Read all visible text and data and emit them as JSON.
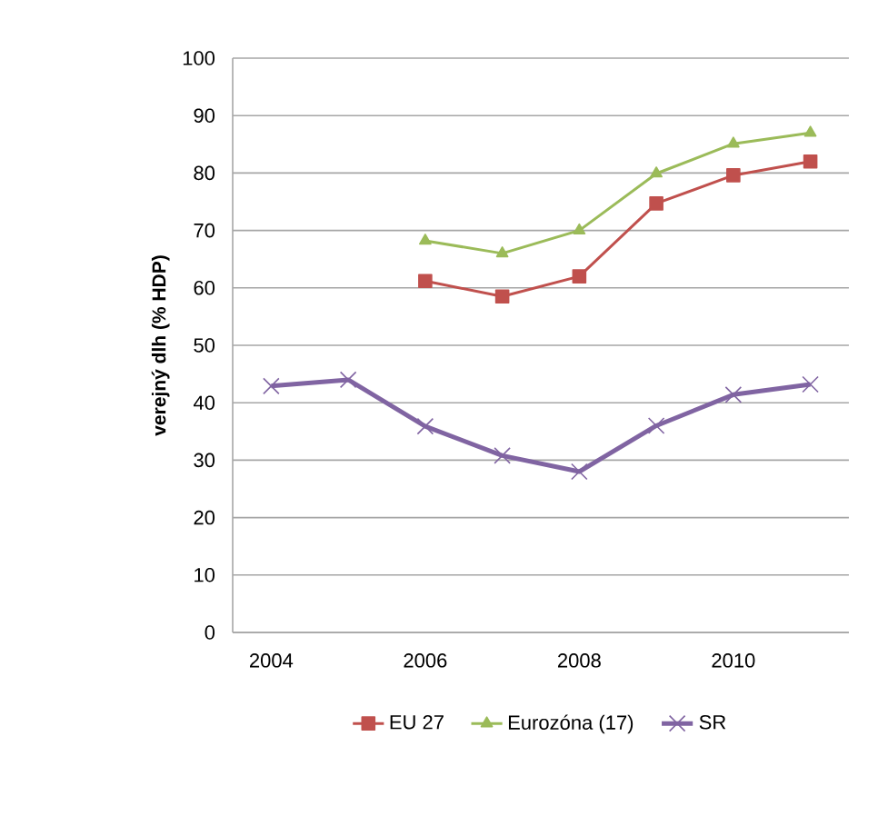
{
  "chart_data": {
    "type": "line",
    "ylabel": "verejný dlh  (% HDP)",
    "categories": [
      "2004",
      null,
      "2006",
      null,
      "2008",
      null,
      "2010",
      null
    ],
    "series": [
      {
        "name": "EU 27",
        "color": "#c0504d",
        "marker": "square",
        "values": [
          null,
          null,
          61.2,
          58.5,
          62,
          74.7,
          79.6,
          82
        ]
      },
      {
        "name": "Eurozóna (17)",
        "color": "#9bbb59",
        "marker": "triangle",
        "values": [
          null,
          null,
          68.2,
          66,
          70,
          79.9,
          85.1,
          87
        ]
      },
      {
        "name": "SR",
        "color": "#8064a2",
        "marker": "cross",
        "values": [
          42.9,
          44,
          35.9,
          30.8,
          28,
          36,
          41.4,
          43.2
        ]
      }
    ],
    "ylim": [
      0,
      100
    ],
    "yticks": [
      0,
      10,
      20,
      30,
      40,
      50,
      60,
      70,
      80,
      90,
      100
    ],
    "grid": "y",
    "legend": "bottom"
  }
}
